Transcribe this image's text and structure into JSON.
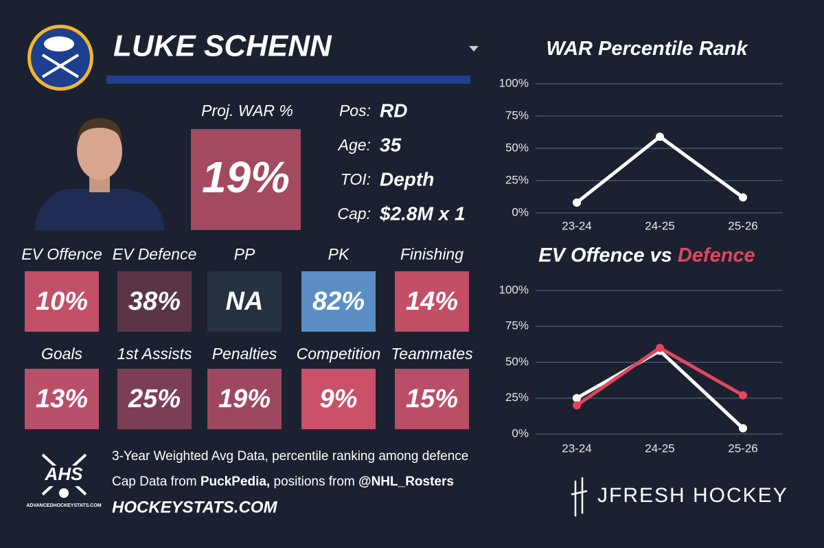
{
  "header": {
    "name": "LUKE SCHENN"
  },
  "projection": {
    "label": "Proj. WAR %",
    "value": "19%",
    "color": "#a34a5e"
  },
  "info": [
    {
      "label": "Pos:",
      "value": "RD"
    },
    {
      "label": "Age:",
      "value": "35"
    },
    {
      "label": "TOI:",
      "value": "Depth"
    },
    {
      "label": "Cap:",
      "value": "$2.8M x 1"
    }
  ],
  "tiles": [
    {
      "label": "EV Offence",
      "value": "10%",
      "color": "#c25068"
    },
    {
      "label": "EV Defence",
      "value": "38%",
      "color": "#5a3548"
    },
    {
      "label": "PP",
      "value": "NA",
      "color": "#263241"
    },
    {
      "label": "PK",
      "value": "82%",
      "color": "#5b8ec4"
    },
    {
      "label": "Finishing",
      "value": "14%",
      "color": "#c24f66"
    },
    {
      "label": "Goals",
      "value": "13%",
      "color": "#b9506a"
    },
    {
      "label": "1st Assists",
      "value": "25%",
      "color": "#7c3e55"
    },
    {
      "label": "Penalties",
      "value": "19%",
      "color": "#9e4860"
    },
    {
      "label": "Competition",
      "value": "9%",
      "color": "#c95068"
    },
    {
      "label": "Teammates",
      "value": "15%",
      "color": "#b84f66"
    }
  ],
  "footer": {
    "line1": "3-Year Weighted Avg Data, percentile ranking among defence",
    "line2": [
      "Cap Data from ",
      "PuckPedia,",
      " positions from ",
      "@NHL_Rosters"
    ],
    "site": "HOCKEYSTATS.COM",
    "logo": "AHS",
    "logo_url": "ADVANCEDHOCKEYSTATS.COM",
    "brand": "JFRESH HOCKEY"
  },
  "chart_data": [
    {
      "type": "line",
      "title": "WAR Percentile Rank",
      "categories": [
        "23-24",
        "24-25",
        "25-26"
      ],
      "series": [
        {
          "color": "#ffffff",
          "values": [
            8,
            59,
            12
          ]
        }
      ],
      "ylim": [
        0,
        100
      ],
      "yticks": [
        {
          "value": 0,
          "label": "0%"
        },
        {
          "value": 25,
          "label": "25%"
        },
        {
          "value": 50,
          "label": "50%"
        },
        {
          "value": 75,
          "label": "75%"
        },
        {
          "value": 100,
          "label": "100%"
        }
      ],
      "grid": true
    },
    {
      "type": "line",
      "title": "EV Offence vs",
      "title_accent": "Defence",
      "title_accent_color": "#e0475f",
      "categories": [
        "23-24",
        "24-25",
        "25-26"
      ],
      "series": [
        {
          "color": "#ffffff",
          "values": [
            25,
            58,
            4
          ]
        },
        {
          "color": "#e0475f",
          "values": [
            20,
            60,
            27
          ]
        }
      ],
      "ylim": [
        0,
        100
      ],
      "yticks": [
        {
          "value": 0,
          "label": "0%"
        },
        {
          "value": 25,
          "label": "25%"
        },
        {
          "value": 50,
          "label": "50%"
        },
        {
          "value": 75,
          "label": "75%"
        },
        {
          "value": 100,
          "label": "100%"
        }
      ],
      "grid": true
    }
  ]
}
